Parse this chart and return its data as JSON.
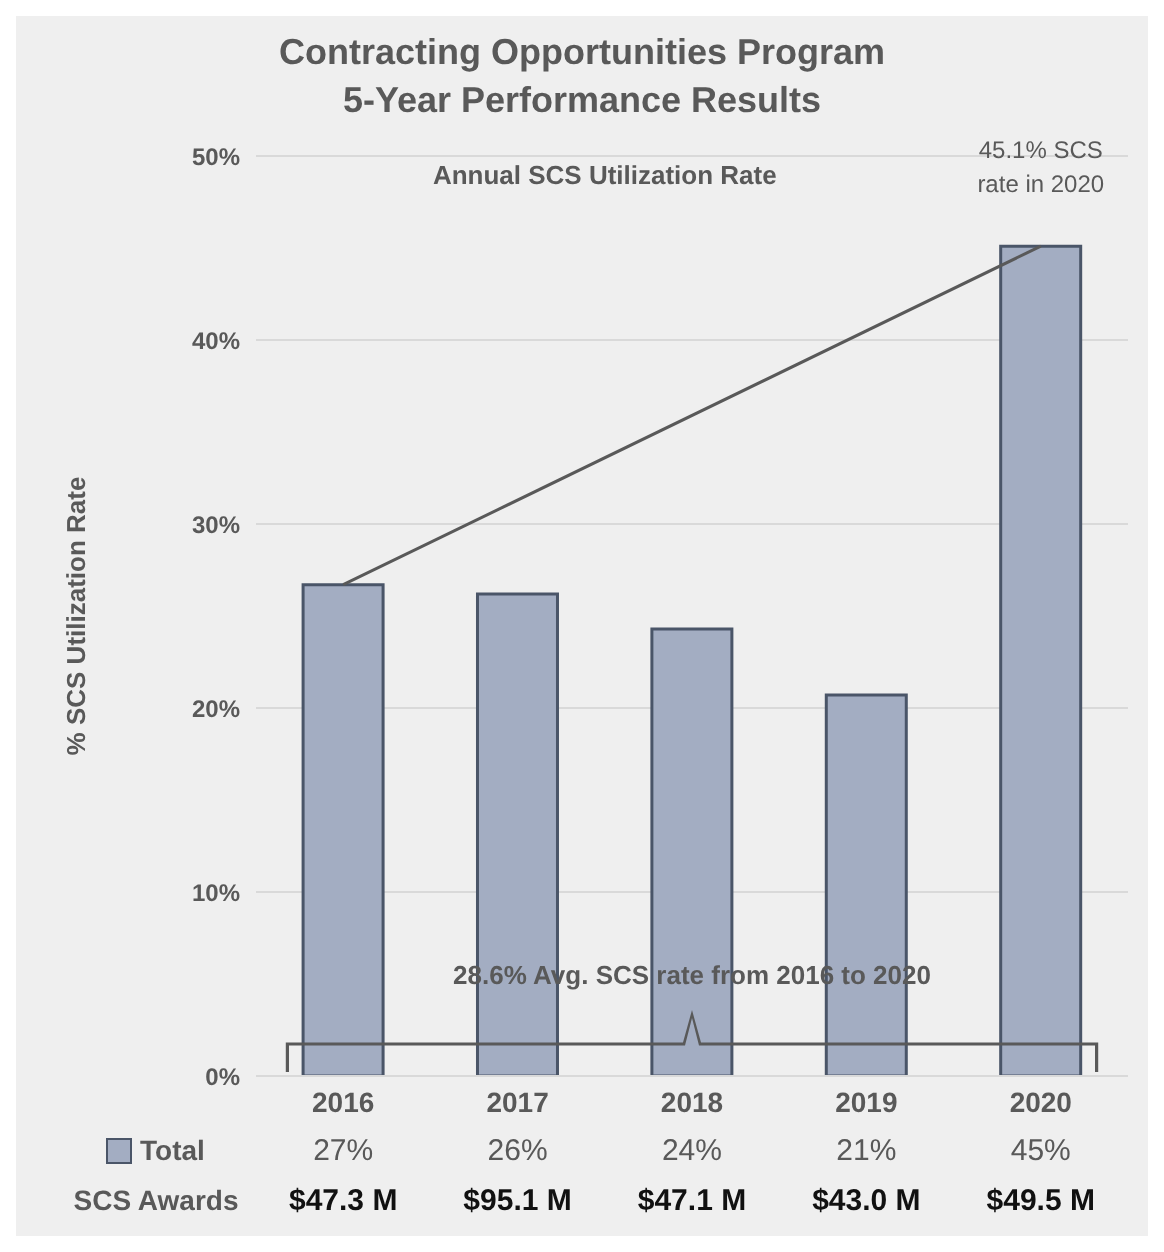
{
  "chart_data": {
    "type": "bar",
    "title": "Contracting Opportunities Program",
    "subtitle": "5-Year Performance Results",
    "ylabel": "% SCS Utilization Rate",
    "categories": [
      "2016",
      "2017",
      "2018",
      "2019",
      "2020"
    ],
    "series": [
      {
        "name": "Total",
        "color": "#a3adc2",
        "values": [
          26.7,
          26.2,
          24.3,
          20.7,
          45.1
        ],
        "value_labels": [
          "27%",
          "26%",
          "24%",
          "21%",
          "45%"
        ]
      }
    ],
    "ylim": [
      0,
      50
    ],
    "yticks": [
      {
        "value": 0,
        "label": "0%"
      },
      {
        "value": 10,
        "label": "10%"
      },
      {
        "value": 20,
        "label": "20%"
      },
      {
        "value": 30,
        "label": "30%"
      },
      {
        "value": 40,
        "label": "40%"
      },
      {
        "value": 50,
        "label": "50%"
      }
    ],
    "grid": "y",
    "legend": "bottom",
    "annotations": [
      "Annual SCS Utilization Rate",
      {
        "text": "45.1% SCS rate in 2020",
        "x": "2020",
        "y": 45.1
      },
      "28.6% Avg. SCS rate from 2016 to 2020",
      "SCS Awards",
      "$47.3 M",
      "$95.1 M",
      "$47.1 M",
      "$43.0 M",
      "$49.5 M"
    ]
  }
}
